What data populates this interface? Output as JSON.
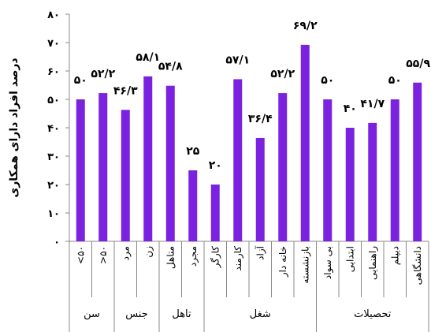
{
  "chart_data": {
    "type": "bar",
    "ylabel": "درصد افراد دارای همکاری",
    "ylim": [
      0,
      80
    ],
    "yticks": [
      0,
      10,
      20,
      30,
      40,
      50,
      60,
      70,
      80
    ],
    "ytick_labels": [
      "۰",
      "۱۰",
      "۲۰",
      "۳۰",
      "۴۰",
      "۵۰",
      "۶۰",
      "۷۰",
      "۸۰"
    ],
    "bar_color": "#7b22e0",
    "categories": [
      "۵۰>",
      "۵۰<",
      "مرد",
      "زن",
      "متاهل",
      "مجرد",
      "کارگر",
      "کارمند",
      "آزاد",
      "خانه دار",
      "بازنشسته",
      "بی سواد",
      "ابتدایی",
      "راهنمایی",
      "دیپلم",
      "دانشگاهی"
    ],
    "values": [
      50,
      52.2,
      46.3,
      58.1,
      54.8,
      25,
      20,
      57.1,
      36.4,
      52.2,
      69.2,
      50,
      40,
      41.7,
      50,
      55.9
    ],
    "data_labels": [
      "۵۰",
      "۵۲/۲",
      "۴۶/۳",
      "۵۸/۱",
      "۵۴/۸",
      "۲۵",
      "۲۰",
      "۵۷/۱",
      "۳۶/۴",
      "۵۲/۲",
      "۶۹/۲",
      "۵۰",
      "۴۰",
      "۴۱/۷",
      "۵۰",
      "۵۵/۹"
    ],
    "groups": [
      {
        "label": "سن",
        "start": 0,
        "end": 1
      },
      {
        "label": "جنس",
        "start": 2,
        "end": 3
      },
      {
        "label": "تاهل",
        "start": 4,
        "end": 5
      },
      {
        "label": "شغل",
        "start": 6,
        "end": 10
      },
      {
        "label": "تحصیلات",
        "start": 11,
        "end": 15
      }
    ]
  }
}
